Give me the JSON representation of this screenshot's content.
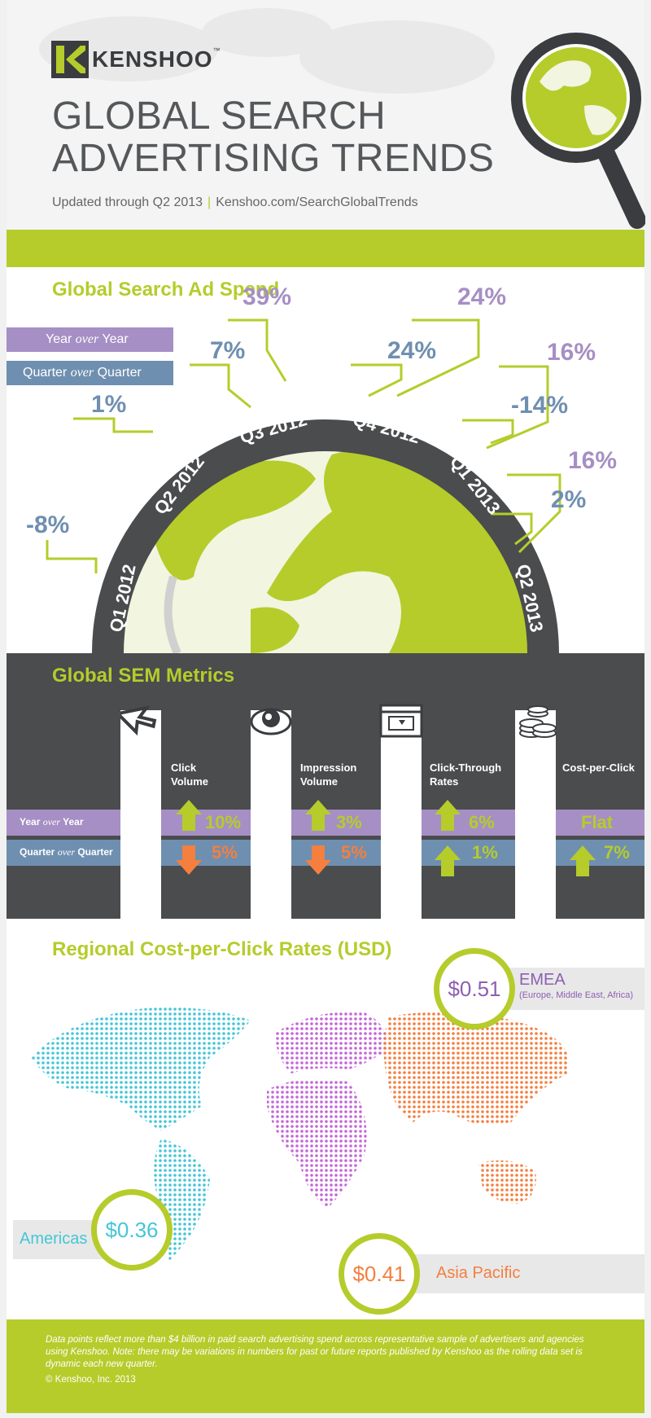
{
  "brand": {
    "name": "KENSHOO",
    "tm": "™"
  },
  "title_line1": "GLOBAL SEARCH",
  "title_line2": "ADVERTISING TRENDS",
  "subtitle_left": "Updated through Q2 2013",
  "subtitle_sep": "|",
  "subtitle_right": "Kenshoo.com/SearchGlobalTrends",
  "colors": {
    "green": "#b5cc2b",
    "purple": "#a68fc4",
    "blue": "#6f8fb0",
    "dark": "#4a4c4e",
    "orange": "#f47f3f",
    "cyan": "#45c6d6",
    "magenta": "#c466d8"
  },
  "spend": {
    "title": "Global Search Ad Spend",
    "legend_yoy": {
      "pre": "Year ",
      "mid": "over",
      "post": " Year"
    },
    "legend_qoq": {
      "pre": "Quarter ",
      "mid": "over",
      "post": " Quarter"
    },
    "quarters": [
      "Q1 2012",
      "Q2 2012",
      "Q3 2012",
      "Q4 2012",
      "Q1 2013",
      "Q2 2013"
    ],
    "values": {
      "q1_2012_qoq": "-8%",
      "q2_2012_qoq": "1%",
      "q3_2012_qoq": "7%",
      "q3_2012_yoy": "39%",
      "q4_2012_qoq": "24%",
      "q4_2012_yoy": "24%",
      "q1_2013_qoq": "-14%",
      "q1_2013_yoy": "16%",
      "q2_2013_qoq": "2%",
      "q2_2013_yoy": "16%"
    }
  },
  "sem": {
    "title": "Global SEM Metrics",
    "row_yoy": {
      "pre": "Year ",
      "mid": "over",
      "post": " Year"
    },
    "row_qoq": {
      "pre": "Quarter ",
      "mid": "over",
      "post": " Quarter"
    },
    "metrics": [
      {
        "label1": "Click",
        "label2": "Volume",
        "yoy": "10%",
        "yoy_dir": "up",
        "qoq": "5%",
        "qoq_dir": "down",
        "icon": "cursor-arrow-icon"
      },
      {
        "label1": "Impression",
        "label2": "Volume",
        "yoy": "3%",
        "yoy_dir": "up",
        "qoq": "5%",
        "qoq_dir": "down",
        "icon": "eye-icon"
      },
      {
        "label1": "Click-Through",
        "label2": "Rates",
        "yoy": "6%",
        "yoy_dir": "up",
        "qoq": "1%",
        "qoq_dir": "up",
        "icon": "browser-window-icon"
      },
      {
        "label1": "Cost-per-Click",
        "label2": "",
        "yoy": "Flat",
        "yoy_dir": "none",
        "qoq": "7%",
        "qoq_dir": "up",
        "icon": "coins-icon"
      }
    ]
  },
  "regional": {
    "title": "Regional Cost-per-Click Rates (USD)",
    "emea": {
      "price": "$0.51",
      "name": "EMEA",
      "detail": "(Europe, Middle East, Africa)"
    },
    "americas": {
      "price": "$0.36",
      "name": "Americas"
    },
    "apac": {
      "price": "$0.41",
      "name": "Asia Pacific"
    }
  },
  "footer": {
    "note": "Data points reflect more than $4 billion in paid search advertising spend across representative sample of advertisers and agencies using Kenshoo. Note: there may be variations in numbers for past or future reports published by Kenshoo as the rolling data set is dynamic each new quarter.",
    "copyright": "© Kenshoo, Inc. 2013"
  }
}
